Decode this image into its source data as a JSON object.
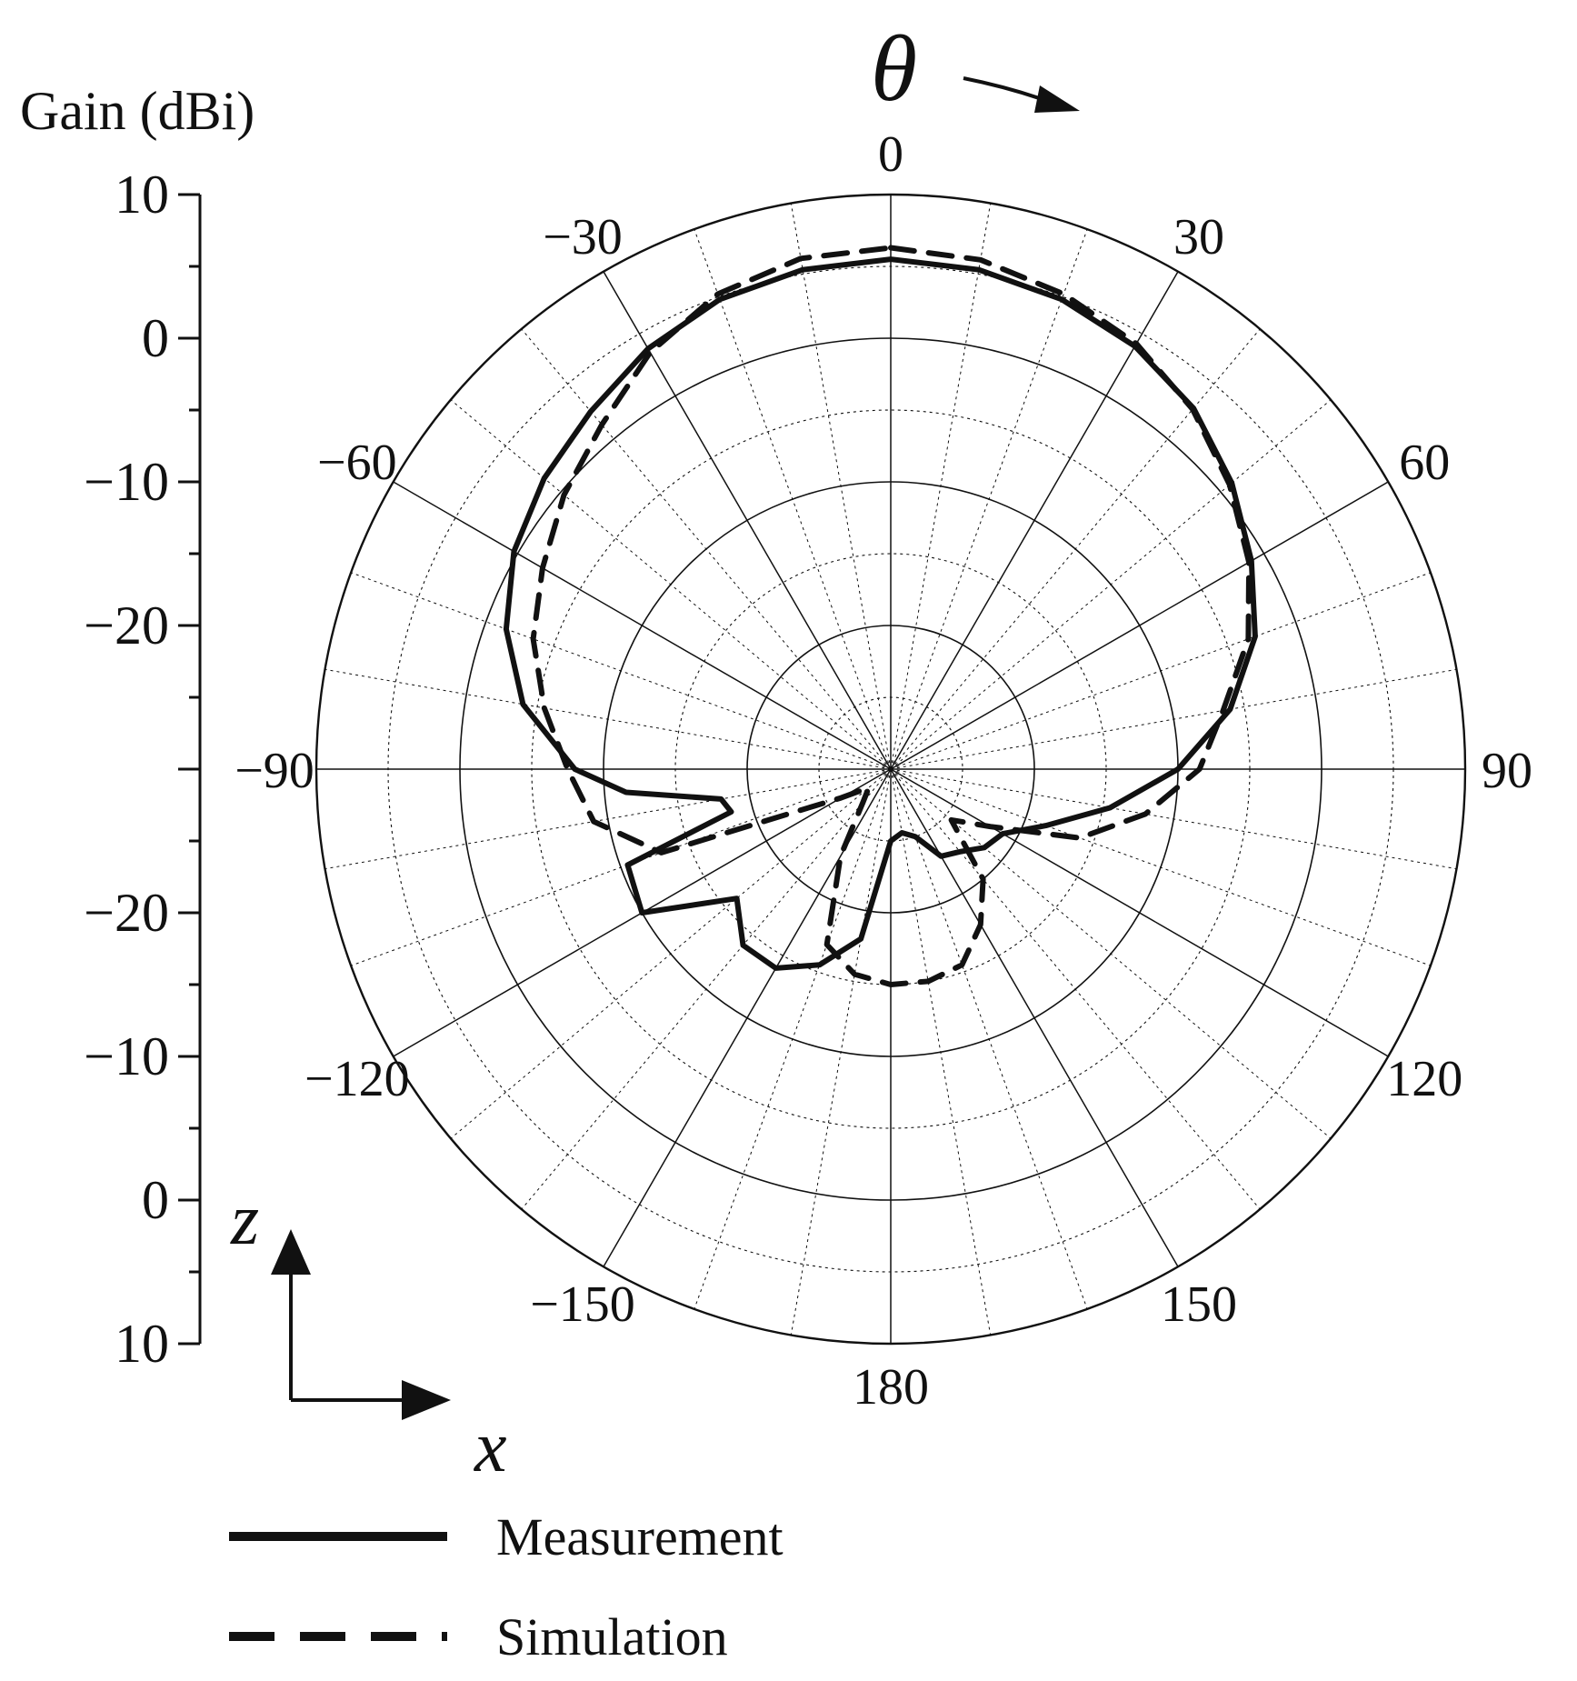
{
  "chart_data": {
    "type": "polar",
    "ylabel": "Gain (dBi)",
    "angle_symbol": "θ",
    "radial_ticks": [
      "10",
      "0",
      "−10",
      "−20",
      "−20",
      "−10",
      "0",
      "10"
    ],
    "radial_scale": {
      "min": -30,
      "max": 10,
      "major_step": 10,
      "minor_step": 5
    },
    "angle_ticks": [
      "0",
      "30",
      "60",
      "90",
      "120",
      "150",
      "180",
      "−150",
      "−120",
      "−90",
      "−60",
      "−30"
    ],
    "axes_indicator": {
      "vertical": "z",
      "horizontal": "x"
    },
    "grid": true,
    "legend_position": "bottom-left",
    "series": [
      {
        "name": "Measurement",
        "style": "solid",
        "color": "#111111",
        "theta": [
          0,
          10,
          20,
          30,
          40,
          50,
          60,
          70,
          80,
          90,
          100,
          110,
          120,
          130,
          140,
          150,
          160,
          170,
          180,
          190,
          200,
          210,
          220,
          230,
          240,
          250,
          255,
          260,
          265,
          270,
          280,
          290,
          300,
          310,
          320,
          330,
          340,
          350,
          360
        ],
        "gain": [
          5.5,
          5.3,
          4.8,
          4.0,
          2.8,
          1.0,
          -1.0,
          -3.0,
          -6.0,
          -10.0,
          -14.5,
          -18.5,
          -21.0,
          -21.5,
          -22.5,
          -23.0,
          -25.0,
          -25.5,
          -25.0,
          -18.0,
          -15.5,
          -14.0,
          -14.0,
          -16.0,
          -10.0,
          -10.5,
          -18.5,
          -18.0,
          -11.5,
          -8.0,
          -4.0,
          -1.5,
          0.3,
          1.5,
          2.5,
          3.8,
          4.8,
          5.3,
          5.5
        ]
      },
      {
        "name": "Simulation",
        "style": "dashed",
        "color": "#111111",
        "theta": [
          0,
          10,
          20,
          30,
          40,
          50,
          60,
          70,
          80,
          90,
          100,
          110,
          120,
          130,
          140,
          150,
          160,
          170,
          180,
          190,
          200,
          210,
          220,
          230,
          240,
          250,
          260,
          270,
          280,
          290,
          300,
          310,
          320,
          330,
          340,
          350,
          360
        ],
        "gain": [
          6.3,
          6.0,
          5.2,
          4.2,
          2.7,
          0.8,
          -1.2,
          -3.5,
          -6.5,
          -8.5,
          -12.0,
          -16.0,
          -22.0,
          -24.5,
          -20.0,
          -17.5,
          -15.5,
          -15.0,
          -15.0,
          -15.5,
          -17.0,
          -23.0,
          -27.0,
          -28.0,
          -26.0,
          -13.0,
          -9.0,
          -7.5,
          -5.5,
          -3.5,
          -2.0,
          -0.3,
          1.3,
          3.5,
          5.2,
          6.1,
          6.3
        ]
      }
    ]
  }
}
